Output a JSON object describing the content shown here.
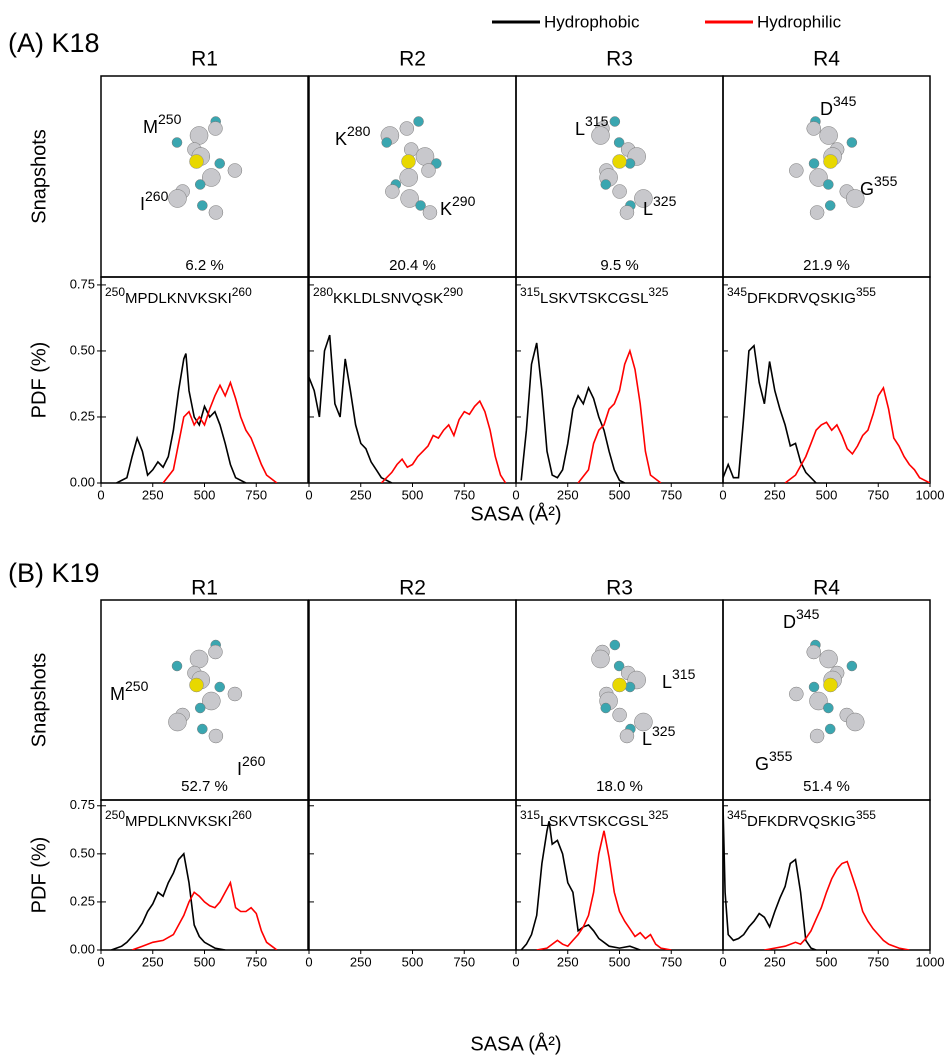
{
  "figure": {
    "legend": [
      {
        "name": "Hydrophobic",
        "color": "#000000"
      },
      {
        "name": "Hydrophilic",
        "color": "#ff0000"
      }
    ],
    "rows": [
      {
        "title": "(A) K18",
        "ylabel_top": "Snapshots",
        "ylabel_bottom": "PDF (%)",
        "xlabel": "SASA (Å²)"
      },
      {
        "title": "(B) K19",
        "ylabel_top": "Snapshots",
        "ylabel_bottom": "PDF (%)",
        "xlabel": "SASA (Å²)"
      }
    ]
  },
  "chart_data": [
    {
      "type": "line",
      "title": "R1",
      "snapshot": {
        "labels": [
          {
            "text": "M",
            "sup": "250"
          },
          {
            "text": "I",
            "sup": "260"
          }
        ],
        "fraction": "6.2 %"
      },
      "sequence": {
        "start": "250",
        "residues": "MPDLKNVKSKI",
        "end": "260"
      },
      "xlim": [
        0,
        1000
      ],
      "xticks": [
        0,
        250,
        500,
        750
      ],
      "ylim": [
        0,
        0.78
      ],
      "yticks": [
        {
          "value": 0,
          "label": "0.00"
        },
        {
          "value": 0.25,
          "label": "0.25"
        },
        {
          "value": 0.5,
          "label": "0.50"
        },
        {
          "value": 0.75,
          "label": "0.75"
        }
      ],
      "series": [
        {
          "color": "#000000",
          "x": [
            75,
            125,
            150,
            175,
            200,
            225,
            250,
            275,
            300,
            325,
            350,
            375,
            400,
            410,
            425,
            450,
            475,
            500,
            525,
            550,
            575,
            600,
            625,
            650,
            700
          ],
          "values": [
            0,
            0.02,
            0.1,
            0.17,
            0.12,
            0.03,
            0.05,
            0.08,
            0.06,
            0.1,
            0.2,
            0.35,
            0.47,
            0.49,
            0.35,
            0.25,
            0.22,
            0.29,
            0.25,
            0.27,
            0.22,
            0.15,
            0.07,
            0.02,
            0
          ]
        },
        {
          "color": "#ff0000",
          "x": [
            300,
            350,
            375,
            400,
            425,
            450,
            475,
            500,
            525,
            550,
            575,
            600,
            625,
            650,
            675,
            700,
            725,
            750,
            775,
            800,
            850
          ],
          "values": [
            0,
            0.05,
            0.15,
            0.25,
            0.27,
            0.22,
            0.25,
            0.22,
            0.28,
            0.33,
            0.37,
            0.33,
            0.38,
            0.32,
            0.25,
            0.2,
            0.17,
            0.12,
            0.07,
            0.03,
            0
          ]
        }
      ]
    },
    {
      "type": "line",
      "title": "R2",
      "snapshot": {
        "labels": [
          {
            "text": "K",
            "sup": "280"
          },
          {
            "text": "K",
            "sup": "290"
          }
        ],
        "fraction": "20.4 %"
      },
      "sequence": {
        "start": "280",
        "residues": "KKLDLSNVQSK",
        "end": "290"
      },
      "xlim": [
        0,
        1000
      ],
      "xticks": [
        0,
        250,
        500,
        750
      ],
      "ylim": [
        0,
        0.78
      ],
      "series": [
        {
          "color": "#000000",
          "x": [
            0,
            25,
            50,
            75,
            100,
            125,
            150,
            175,
            200,
            225,
            250,
            275,
            300,
            325,
            350,
            400
          ],
          "values": [
            0.4,
            0.35,
            0.25,
            0.5,
            0.56,
            0.3,
            0.25,
            0.47,
            0.35,
            0.22,
            0.15,
            0.13,
            0.08,
            0.05,
            0.02,
            0
          ]
        },
        {
          "color": "#ff0000",
          "x": [
            350,
            400,
            425,
            450,
            475,
            500,
            525,
            550,
            575,
            600,
            625,
            650,
            675,
            700,
            725,
            750,
            775,
            800,
            825,
            850,
            875,
            900,
            925,
            950
          ],
          "values": [
            0,
            0.04,
            0.07,
            0.09,
            0.06,
            0.07,
            0.1,
            0.12,
            0.14,
            0.18,
            0.17,
            0.2,
            0.22,
            0.18,
            0.24,
            0.27,
            0.26,
            0.29,
            0.31,
            0.27,
            0.2,
            0.1,
            0.03,
            0
          ]
        }
      ]
    },
    {
      "type": "line",
      "title": "R3",
      "snapshot": {
        "labels": [
          {
            "text": "L",
            "sup": "315"
          },
          {
            "text": "L",
            "sup": "325"
          }
        ],
        "fraction": "9.5 %"
      },
      "sequence": {
        "start": "315",
        "residues": "LSKVTSKCGSL",
        "end": "325"
      },
      "xlim": [
        0,
        1000
      ],
      "xticks": [
        0,
        250,
        500,
        750
      ],
      "ylim": [
        0,
        0.78
      ],
      "series": [
        {
          "color": "#000000",
          "x": [
            25,
            50,
            75,
            100,
            125,
            150,
            175,
            200,
            225,
            250,
            275,
            300,
            325,
            350,
            375,
            400,
            425,
            450,
            475,
            500,
            525
          ],
          "values": [
            0.01,
            0.2,
            0.45,
            0.53,
            0.35,
            0.12,
            0.03,
            0.02,
            0.05,
            0.15,
            0.28,
            0.33,
            0.3,
            0.36,
            0.32,
            0.25,
            0.2,
            0.12,
            0.05,
            0.01,
            0
          ]
        },
        {
          "color": "#ff0000",
          "x": [
            300,
            350,
            375,
            400,
            425,
            450,
            475,
            500,
            525,
            550,
            575,
            600,
            625,
            650,
            700
          ],
          "values": [
            0,
            0.05,
            0.15,
            0.2,
            0.22,
            0.28,
            0.3,
            0.35,
            0.45,
            0.5,
            0.43,
            0.3,
            0.12,
            0.03,
            0
          ]
        }
      ]
    },
    {
      "type": "line",
      "title": "R4",
      "snapshot": {
        "labels": [
          {
            "text": "D",
            "sup": "345"
          },
          {
            "text": "G",
            "sup": "355"
          }
        ],
        "fraction": "21.9 %"
      },
      "sequence": {
        "start": "345",
        "residues": "DFKDRVQSKIG",
        "end": "355"
      },
      "xlim": [
        0,
        1000
      ],
      "xticks": [
        0,
        250,
        500,
        750,
        1000
      ],
      "ylim": [
        0,
        0.78
      ],
      "series": [
        {
          "color": "#000000",
          "x": [
            0,
            25,
            50,
            75,
            100,
            125,
            150,
            175,
            200,
            225,
            250,
            275,
            300,
            325,
            350,
            375,
            400,
            450
          ],
          "values": [
            0.02,
            0.07,
            0.02,
            0.02,
            0.25,
            0.5,
            0.52,
            0.38,
            0.3,
            0.46,
            0.35,
            0.28,
            0.22,
            0.14,
            0.15,
            0.08,
            0.04,
            0
          ]
        },
        {
          "color": "#ff0000",
          "x": [
            300,
            350,
            400,
            425,
            450,
            475,
            500,
            525,
            550,
            575,
            600,
            625,
            650,
            675,
            700,
            725,
            750,
            775,
            800,
            825,
            850,
            875,
            900,
            925,
            950,
            1000
          ],
          "values": [
            0,
            0.03,
            0.1,
            0.15,
            0.2,
            0.22,
            0.23,
            0.2,
            0.22,
            0.18,
            0.13,
            0.11,
            0.14,
            0.18,
            0.2,
            0.26,
            0.33,
            0.36,
            0.28,
            0.17,
            0.14,
            0.1,
            0.07,
            0.05,
            0.02,
            0
          ]
        }
      ]
    },
    {
      "type": "line",
      "title": "R1",
      "snapshot": {
        "labels": [
          {
            "text": "M",
            "sup": "250"
          },
          {
            "text": "I",
            "sup": "260"
          }
        ],
        "fraction": "52.7 %"
      },
      "sequence": {
        "start": "250",
        "residues": "MPDLKNVKSKI",
        "end": "260"
      },
      "xlim": [
        0,
        1000
      ],
      "xticks": [
        0,
        250,
        500,
        750
      ],
      "ylim": [
        0,
        0.78
      ],
      "yticks": [
        {
          "value": 0,
          "label": "0.00"
        },
        {
          "value": 0.25,
          "label": "0.25"
        },
        {
          "value": 0.5,
          "label": "0.50"
        },
        {
          "value": 0.75,
          "label": "0.75"
        }
      ],
      "series": [
        {
          "color": "#000000",
          "x": [
            50,
            75,
            100,
            125,
            150,
            175,
            200,
            225,
            250,
            275,
            300,
            325,
            350,
            375,
            400,
            425,
            450,
            475,
            500,
            550,
            600
          ],
          "values": [
            0,
            0.01,
            0.02,
            0.04,
            0.07,
            0.1,
            0.14,
            0.2,
            0.24,
            0.3,
            0.28,
            0.35,
            0.4,
            0.47,
            0.5,
            0.35,
            0.13,
            0.07,
            0.04,
            0.01,
            0
          ]
        },
        {
          "color": "#ff0000",
          "x": [
            150,
            200,
            250,
            300,
            350,
            400,
            425,
            450,
            475,
            500,
            525,
            550,
            575,
            600,
            625,
            650,
            675,
            700,
            725,
            750,
            775,
            800,
            825,
            850
          ],
          "values": [
            0,
            0.02,
            0.04,
            0.05,
            0.08,
            0.18,
            0.25,
            0.3,
            0.28,
            0.25,
            0.23,
            0.22,
            0.25,
            0.3,
            0.35,
            0.22,
            0.2,
            0.2,
            0.22,
            0.19,
            0.1,
            0.04,
            0.02,
            0
          ]
        }
      ]
    },
    {
      "type": "line",
      "title": "R2",
      "xlim": [
        0,
        1000
      ],
      "xticks": [
        0,
        250,
        500,
        750
      ],
      "ylim": [
        0,
        0.78
      ],
      "series": []
    },
    {
      "type": "line",
      "title": "R3",
      "snapshot": {
        "labels": [
          {
            "text": "L",
            "sup": "315"
          },
          {
            "text": "L",
            "sup": "325"
          }
        ],
        "fraction": "18.0 %"
      },
      "sequence": {
        "start": "315",
        "residues": "LSKVTSKCGSL",
        "end": "325"
      },
      "xlim": [
        0,
        1000
      ],
      "xticks": [
        0,
        250,
        500,
        750
      ],
      "ylim": [
        0,
        0.78
      ],
      "series": [
        {
          "color": "#000000",
          "x": [
            25,
            50,
            75,
            100,
            125,
            150,
            160,
            175,
            200,
            225,
            250,
            275,
            300,
            325,
            350,
            375,
            400,
            450,
            500,
            550,
            600
          ],
          "values": [
            0,
            0.03,
            0.08,
            0.18,
            0.45,
            0.62,
            0.67,
            0.55,
            0.57,
            0.5,
            0.35,
            0.3,
            0.1,
            0.12,
            0.13,
            0.1,
            0.06,
            0.02,
            0.01,
            0.02,
            0
          ]
        },
        {
          "color": "#ff0000",
          "x": [
            100,
            150,
            200,
            225,
            250,
            275,
            300,
            325,
            350,
            375,
            400,
            425,
            450,
            475,
            500,
            525,
            550,
            575,
            600,
            625,
            650,
            675,
            700,
            750
          ],
          "values": [
            0,
            0.01,
            0.05,
            0.03,
            0.02,
            0.05,
            0.08,
            0.12,
            0.18,
            0.3,
            0.5,
            0.62,
            0.48,
            0.3,
            0.2,
            0.15,
            0.11,
            0.07,
            0.09,
            0.06,
            0.08,
            0.03,
            0.01,
            0
          ]
        }
      ]
    },
    {
      "type": "line",
      "title": "R4",
      "snapshot": {
        "labels": [
          {
            "text": "D",
            "sup": "345"
          },
          {
            "text": "G",
            "sup": "355"
          }
        ],
        "fraction": "51.4 %"
      },
      "sequence": {
        "start": "345",
        "residues": "DFKDRVQSKIG",
        "end": "355"
      },
      "xlim": [
        0,
        1000
      ],
      "xticks": [
        0,
        250,
        500,
        750,
        1000
      ],
      "ylim": [
        0,
        0.78
      ],
      "series": [
        {
          "color": "#000000",
          "x": [
            0,
            10,
            25,
            50,
            75,
            100,
            125,
            150,
            175,
            200,
            225,
            250,
            275,
            300,
            325,
            350,
            375,
            400,
            425,
            450
          ],
          "values": [
            0.75,
            0.3,
            0.08,
            0.05,
            0.06,
            0.08,
            0.12,
            0.15,
            0.19,
            0.17,
            0.12,
            0.2,
            0.27,
            0.33,
            0.45,
            0.47,
            0.3,
            0.05,
            0.01,
            0
          ]
        },
        {
          "color": "#ff0000",
          "x": [
            200,
            250,
            300,
            350,
            375,
            400,
            425,
            450,
            475,
            500,
            525,
            550,
            575,
            600,
            625,
            650,
            675,
            700,
            725,
            750,
            775,
            800,
            850,
            900
          ],
          "values": [
            0,
            0.01,
            0.02,
            0.04,
            0.03,
            0.06,
            0.1,
            0.16,
            0.22,
            0.3,
            0.37,
            0.42,
            0.45,
            0.46,
            0.38,
            0.3,
            0.2,
            0.15,
            0.11,
            0.08,
            0.05,
            0.03,
            0.01,
            0
          ]
        }
      ]
    }
  ]
}
